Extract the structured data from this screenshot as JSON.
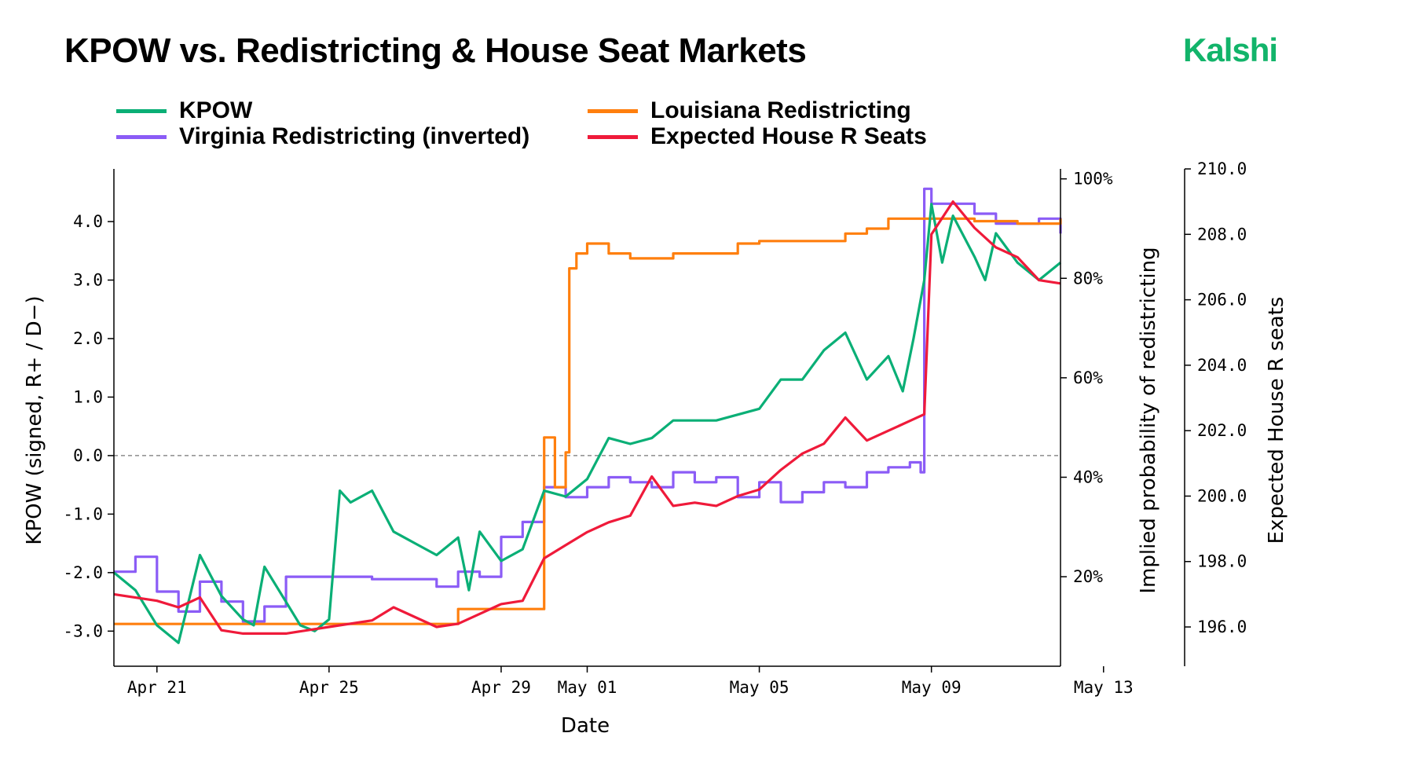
{
  "title": "KPOW vs. Redistricting & House Seat Markets",
  "brand": {
    "name": "Kalshi",
    "color": "#12b46a"
  },
  "chart_data": {
    "type": "line",
    "xlabel": "Date",
    "ylabel_left": "KPOW (signed, R+ / D−)",
    "ylabel_right1": "Implied probability of redistricting",
    "ylabel_right2": "Expected House R seats",
    "x_ticks": [
      "Apr 21",
      "Apr 25",
      "Apr 29",
      "May 01",
      "May 05",
      "May 09",
      "May 13"
    ],
    "x_range": [
      "2025-04-20",
      "2025-05-12"
    ],
    "left_axis": {
      "ticks": [
        "-3.0",
        "-2.0",
        "-1.0",
        "0.0",
        "1.0",
        "2.0",
        "3.0",
        "4.0"
      ],
      "ylim": [
        -3.6,
        4.9
      ]
    },
    "prob_axis": {
      "ticks": [
        "20%",
        "40%",
        "60%",
        "80%",
        "100%"
      ],
      "ylim": [
        2,
        102
      ]
    },
    "seats_axis": {
      "ticks": [
        "196.0",
        "198.0",
        "200.0",
        "202.0",
        "204.0",
        "206.0",
        "208.0",
        "210.0"
      ],
      "ylim": [
        194.8,
        210.0
      ]
    },
    "zero_line": true,
    "series": [
      {
        "name": "KPOW",
        "axis": "left",
        "color": "#0aaf76",
        "points": [
          [
            "2025-04-20",
            -2.0
          ],
          [
            "2025-04-20T12:00",
            -2.3
          ],
          [
            "2025-04-21",
            -2.9
          ],
          [
            "2025-04-21T12:00",
            -3.2
          ],
          [
            "2025-04-22",
            -1.7
          ],
          [
            "2025-04-22T12:00",
            -2.4
          ],
          [
            "2025-04-23",
            -2.8
          ],
          [
            "2025-04-23T06:00",
            -2.9
          ],
          [
            "2025-04-23T12:00",
            -1.9
          ],
          [
            "2025-04-24",
            -2.5
          ],
          [
            "2025-04-24T08:00",
            -2.9
          ],
          [
            "2025-04-24T16:00",
            -3.0
          ],
          [
            "2025-04-25",
            -2.8
          ],
          [
            "2025-04-25T06:00",
            -0.6
          ],
          [
            "2025-04-25T12:00",
            -0.8
          ],
          [
            "2025-04-26",
            -0.6
          ],
          [
            "2025-04-26T12:00",
            -1.3
          ],
          [
            "2025-04-27",
            -1.5
          ],
          [
            "2025-04-27T12:00",
            -1.7
          ],
          [
            "2025-04-28",
            -1.4
          ],
          [
            "2025-04-28T06:00",
            -2.3
          ],
          [
            "2025-04-28T12:00",
            -1.3
          ],
          [
            "2025-04-29",
            -1.8
          ],
          [
            "2025-04-29T12:00",
            -1.6
          ],
          [
            "2025-04-30",
            -0.6
          ],
          [
            "2025-04-30T12:00",
            -0.7
          ],
          [
            "2025-05-01",
            -0.4
          ],
          [
            "2025-05-01T12:00",
            0.3
          ],
          [
            "2025-05-02",
            0.2
          ],
          [
            "2025-05-02T12:00",
            0.3
          ],
          [
            "2025-05-03",
            0.6
          ],
          [
            "2025-05-04",
            0.6
          ],
          [
            "2025-05-05",
            0.8
          ],
          [
            "2025-05-05T12:00",
            1.3
          ],
          [
            "2025-05-06",
            1.3
          ],
          [
            "2025-05-06T12:00",
            1.8
          ],
          [
            "2025-05-07",
            2.1
          ],
          [
            "2025-05-07T12:00",
            1.3
          ],
          [
            "2025-05-08",
            1.7
          ],
          [
            "2025-05-08T08:00",
            1.1
          ],
          [
            "2025-05-08T14:00",
            2.0
          ],
          [
            "2025-05-08T20:00",
            3.0
          ],
          [
            "2025-05-09",
            4.3
          ],
          [
            "2025-05-09T06:00",
            3.3
          ],
          [
            "2025-05-09T12:00",
            4.1
          ],
          [
            "2025-05-10",
            3.4
          ],
          [
            "2025-05-10T06:00",
            3.0
          ],
          [
            "2025-05-10T12:00",
            3.8
          ],
          [
            "2025-05-11",
            3.3
          ],
          [
            "2025-05-11T12:00",
            3.0
          ],
          [
            "2025-05-12",
            3.3
          ]
        ]
      },
      {
        "name": "Louisiana Redistricting",
        "axis": "prob",
        "color": "#ff7f0e",
        "points": [
          [
            "2025-04-20",
            10.5
          ],
          [
            "2025-04-28",
            10.5
          ],
          [
            "2025-04-28",
            13.5
          ],
          [
            "2025-04-29T18:00",
            13.5
          ],
          [
            "2025-04-30",
            48.0
          ],
          [
            "2025-04-30T06:00",
            38.0
          ],
          [
            "2025-04-30T12:00",
            45.0
          ],
          [
            "2025-04-30T14:00",
            82.0
          ],
          [
            "2025-04-30T18:00",
            85.0
          ],
          [
            "2025-05-01",
            87.0
          ],
          [
            "2025-05-01T12:00",
            85.0
          ],
          [
            "2025-05-02",
            84.0
          ],
          [
            "2025-05-03",
            85.0
          ],
          [
            "2025-05-04",
            85.0
          ],
          [
            "2025-05-04T12:00",
            87.0
          ],
          [
            "2025-05-05",
            87.5
          ],
          [
            "2025-05-06",
            87.5
          ],
          [
            "2025-05-07",
            89.0
          ],
          [
            "2025-05-07T12:00",
            90.0
          ],
          [
            "2025-05-08",
            92.0
          ],
          [
            "2025-05-09",
            92.0
          ],
          [
            "2025-05-10",
            91.5
          ],
          [
            "2025-05-11",
            91.0
          ],
          [
            "2025-05-12",
            92.0
          ]
        ]
      },
      {
        "name": "Virginia Redistricting (inverted)",
        "axis": "prob",
        "color": "#8b5cf6",
        "points": [
          [
            "2025-04-20",
            21.0
          ],
          [
            "2025-04-20T12:00",
            24.0
          ],
          [
            "2025-04-21",
            17.0
          ],
          [
            "2025-04-21T12:00",
            13.0
          ],
          [
            "2025-04-22",
            19.0
          ],
          [
            "2025-04-22T12:00",
            15.0
          ],
          [
            "2025-04-23",
            11.0
          ],
          [
            "2025-04-23T12:00",
            14.0
          ],
          [
            "2025-04-24",
            20.0
          ],
          [
            "2025-04-25",
            20.0
          ],
          [
            "2025-04-26",
            19.5
          ],
          [
            "2025-04-27",
            19.5
          ],
          [
            "2025-04-27T12:00",
            18.0
          ],
          [
            "2025-04-28",
            21.0
          ],
          [
            "2025-04-28T12:00",
            20.0
          ],
          [
            "2025-04-29",
            28.0
          ],
          [
            "2025-04-29T12:00",
            31.0
          ],
          [
            "2025-04-30",
            38.0
          ],
          [
            "2025-04-30T12:00",
            36.0
          ],
          [
            "2025-05-01",
            38.0
          ],
          [
            "2025-05-01T12:00",
            40.0
          ],
          [
            "2025-05-02",
            39.0
          ],
          [
            "2025-05-02T12:00",
            38.0
          ],
          [
            "2025-05-03",
            41.0
          ],
          [
            "2025-05-03T12:00",
            39.0
          ],
          [
            "2025-05-04",
            40.0
          ],
          [
            "2025-05-04T12:00",
            36.0
          ],
          [
            "2025-05-05",
            39.0
          ],
          [
            "2025-05-05T12:00",
            35.0
          ],
          [
            "2025-05-06",
            37.0
          ],
          [
            "2025-05-06T12:00",
            39.0
          ],
          [
            "2025-05-07",
            38.0
          ],
          [
            "2025-05-07T12:00",
            41.0
          ],
          [
            "2025-05-08",
            42.0
          ],
          [
            "2025-05-08T12:00",
            43.0
          ],
          [
            "2025-05-08T18:00",
            41.0
          ],
          [
            "2025-05-08T20:00",
            98.0
          ],
          [
            "2025-05-09",
            95.0
          ],
          [
            "2025-05-10",
            93.0
          ],
          [
            "2025-05-10T12:00",
            91.0
          ],
          [
            "2025-05-11",
            91.0
          ],
          [
            "2025-05-11T12:00",
            92.0
          ],
          [
            "2025-05-12",
            89.0
          ]
        ]
      },
      {
        "name": "Expected House R Seats",
        "axis": "seats",
        "color": "#ef1a3a",
        "points": [
          [
            "2025-04-20",
            197.0
          ],
          [
            "2025-04-21",
            196.8
          ],
          [
            "2025-04-21T12:00",
            196.6
          ],
          [
            "2025-04-22",
            196.9
          ],
          [
            "2025-04-22T12:00",
            195.9
          ],
          [
            "2025-04-23",
            195.8
          ],
          [
            "2025-04-24",
            195.8
          ],
          [
            "2025-04-25",
            196.0
          ],
          [
            "2025-04-26",
            196.2
          ],
          [
            "2025-04-26T12:00",
            196.6
          ],
          [
            "2025-04-27",
            196.3
          ],
          [
            "2025-04-27T12:00",
            196.0
          ],
          [
            "2025-04-28",
            196.1
          ],
          [
            "2025-04-28T12:00",
            196.4
          ],
          [
            "2025-04-29",
            196.7
          ],
          [
            "2025-04-29T12:00",
            196.8
          ],
          [
            "2025-04-30",
            198.1
          ],
          [
            "2025-04-30T12:00",
            198.5
          ],
          [
            "2025-05-01",
            198.9
          ],
          [
            "2025-05-01T12:00",
            199.2
          ],
          [
            "2025-05-02",
            199.4
          ],
          [
            "2025-05-02T12:00",
            200.6
          ],
          [
            "2025-05-03",
            199.7
          ],
          [
            "2025-05-03T12:00",
            199.8
          ],
          [
            "2025-05-04",
            199.7
          ],
          [
            "2025-05-04T12:00",
            200.0
          ],
          [
            "2025-05-05",
            200.2
          ],
          [
            "2025-05-05T12:00",
            200.8
          ],
          [
            "2025-05-06",
            201.3
          ],
          [
            "2025-05-06T12:00",
            201.6
          ],
          [
            "2025-05-07",
            202.4
          ],
          [
            "2025-05-07T12:00",
            201.7
          ],
          [
            "2025-05-08",
            202.0
          ],
          [
            "2025-05-08T12:00",
            202.3
          ],
          [
            "2025-05-08T20:00",
            202.5
          ],
          [
            "2025-05-09",
            208.0
          ],
          [
            "2025-05-09T12:00",
            209.0
          ],
          [
            "2025-05-10",
            208.2
          ],
          [
            "2025-05-10T12:00",
            207.6
          ],
          [
            "2025-05-11",
            207.3
          ],
          [
            "2025-05-11T12:00",
            206.6
          ],
          [
            "2025-05-12",
            206.5
          ]
        ]
      }
    ]
  }
}
